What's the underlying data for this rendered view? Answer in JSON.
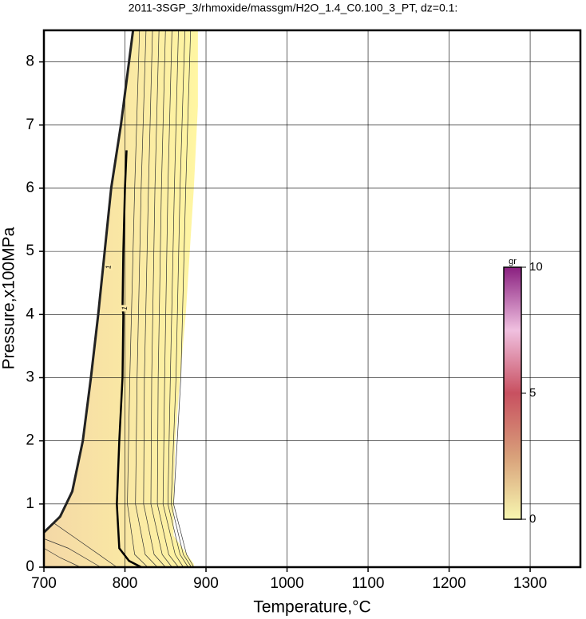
{
  "chart_data": {
    "type": "contour",
    "title": "2011-3SGP_3/rhmoxide/massgm/H2O_1.4_C0.100_3_PT, dz=0.1:",
    "xlabel": "Temperature,°C",
    "ylabel": "Pressure,x100MPa",
    "xlim": [
      700,
      1362
    ],
    "ylim": [
      0,
      8.5
    ],
    "xticks": [
      700,
      800,
      900,
      1000,
      1100,
      1200,
      1300
    ],
    "yticks": [
      0,
      1,
      2,
      3,
      4,
      5,
      6,
      7,
      8
    ],
    "grid": true,
    "region": {
      "colors": [
        "#f4d8a6",
        "#fff6a2"
      ],
      "x": [
        700,
        885,
        885,
        860,
        860,
        862,
        868,
        875,
        880,
        885,
        890,
        890,
        810,
        805,
        795,
        783,
        775,
        767,
        758,
        748,
        735,
        720,
        700
      ],
      "y": [
        0,
        0,
        0.05,
        0.5,
        1,
        2,
        3,
        4,
        5,
        6,
        7.3,
        8.5,
        8.5,
        8,
        7,
        6,
        5,
        4,
        3,
        2,
        1.2,
        0.8,
        0.55
      ]
    },
    "contours": [
      {
        "width": 3,
        "color": "#222222",
        "x": [
          810,
          805,
          795,
          783,
          775,
          767,
          758,
          748,
          735,
          720,
          700
        ],
        "y": [
          8.5,
          8,
          7,
          6,
          5,
          4,
          3,
          2,
          1.2,
          0.8,
          0.55
        ]
      },
      {
        "width": 2.5,
        "color": "#000000",
        "x": [
          802,
          800,
          798,
          797,
          798,
          797,
          793,
          790,
          793,
          805,
          820
        ],
        "y": [
          6.6,
          6,
          5,
          4.1,
          4,
          3,
          2,
          1,
          0.3,
          0.1,
          0
        ]
      },
      {
        "width": 0.7,
        "color": "#333333",
        "x": [
          818,
          812,
          806,
          803,
          812,
          828
        ],
        "y": [
          8.5,
          6,
          3,
          1,
          0.2,
          0
        ]
      },
      {
        "width": 0.7,
        "color": "#333333",
        "x": [
          826,
          820,
          815,
          813,
          825,
          840
        ],
        "y": [
          8.5,
          6,
          3,
          1,
          0.2,
          0
        ]
      },
      {
        "width": 0.7,
        "color": "#333333",
        "x": [
          834,
          829,
          824,
          823,
          836,
          850
        ],
        "y": [
          8.5,
          6,
          3,
          1,
          0.2,
          0
        ]
      },
      {
        "width": 0.7,
        "color": "#333333",
        "x": [
          842,
          837,
          833,
          832,
          846,
          858
        ],
        "y": [
          8.5,
          6,
          3,
          1,
          0.2,
          0
        ]
      },
      {
        "width": 0.7,
        "color": "#333333",
        "x": [
          850,
          845,
          841,
          840,
          854,
          866
        ],
        "y": [
          8.5,
          6,
          3,
          1,
          0.2,
          0
        ]
      },
      {
        "width": 0.7,
        "color": "#333333",
        "x": [
          858,
          853,
          849,
          847,
          862,
          872
        ],
        "y": [
          8.5,
          6,
          3,
          1,
          0.2,
          0
        ]
      },
      {
        "width": 0.7,
        "color": "#333333",
        "x": [
          866,
          861,
          856,
          853,
          868,
          878
        ],
        "y": [
          8.5,
          6,
          3,
          1,
          0.2,
          0
        ]
      },
      {
        "width": 0.7,
        "color": "#333333",
        "x": [
          874,
          868,
          863,
          857,
          872,
          882
        ],
        "y": [
          8.5,
          6,
          3,
          1,
          0.2,
          0
        ]
      },
      {
        "width": 0.7,
        "color": "#333333",
        "x": [
          881,
          875,
          869,
          860,
          876,
          885
        ],
        "y": [
          8.5,
          6,
          3,
          1,
          0.2,
          0
        ]
      },
      {
        "width": 0.7,
        "color": "#333333",
        "x": [
          700,
          730,
          770
        ],
        "y": [
          0.45,
          0.3,
          0
        ]
      },
      {
        "width": 0.7,
        "color": "#333333",
        "x": [
          700,
          720,
          745
        ],
        "y": [
          0.3,
          0.15,
          0
        ]
      },
      {
        "width": 0.7,
        "color": "#333333",
        "x": [
          712,
          740,
          790
        ],
        "y": [
          0.7,
          0.45,
          0
        ]
      }
    ],
    "contour_labels": [
      {
        "text": "1",
        "x": 780,
        "y": 4.75
      },
      {
        "text": "1",
        "x": 800,
        "y": 4.1
      }
    ],
    "colorbar": {
      "label": "gr",
      "lim": [
        0,
        10
      ],
      "ticks": [
        0,
        5,
        10
      ],
      "colors": [
        "#f7f7b0",
        "#d8a07a",
        "#c85060",
        "#f0c0e0",
        "#8a2080"
      ]
    }
  }
}
